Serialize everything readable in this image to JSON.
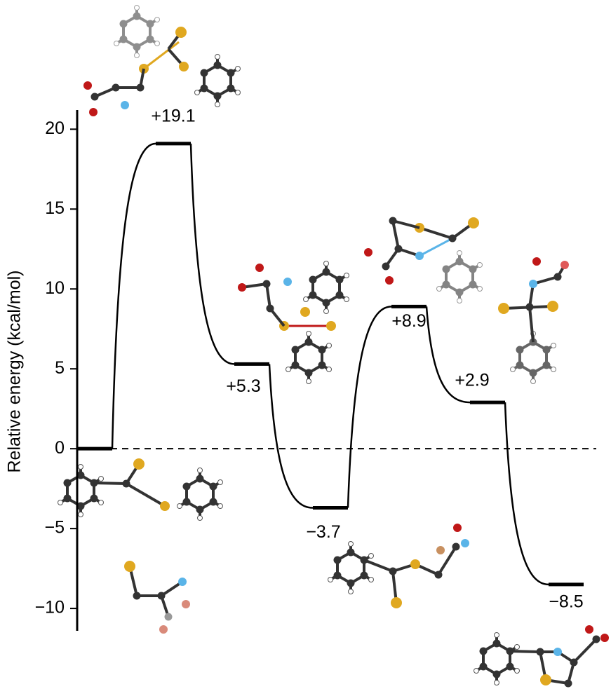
{
  "chart_data": {
    "type": "profile",
    "y_label": "Relative energy (kcal/mol)",
    "values": [
      0,
      19.1,
      5.3,
      -3.7,
      8.9,
      2.9,
      -8.5
    ],
    "value_labels": [
      null,
      "+19.1",
      "+5.3",
      "−3.7",
      "+8.9",
      "+2.9",
      "−8.5"
    ],
    "color": "#000000",
    "ylim": [
      -11.4,
      21.2
    ],
    "yticks": [
      {
        "value": -10,
        "label": "−10"
      },
      {
        "value": -5,
        "label": "−5"
      },
      0,
      5,
      10,
      15,
      20
    ],
    "zero_line": "dashed"
  }
}
